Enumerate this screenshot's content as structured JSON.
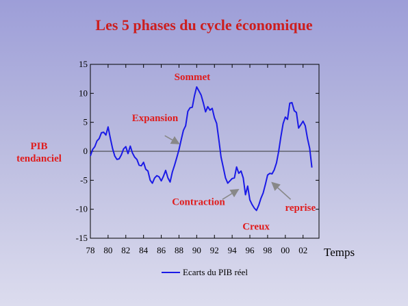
{
  "slide": {
    "title": "Les 5 phases du cycle économique"
  },
  "chart_data": {
    "type": "line",
    "xlabel": "Temps",
    "ylabel": "PIB tendanciel",
    "ylabel_lines": [
      "PIB",
      "tendanciel"
    ],
    "xlim": [
      1978,
      2003.8
    ],
    "ylim": [
      -15,
      15
    ],
    "x_ticks": [
      1978,
      1980,
      1982,
      1984,
      1986,
      1988,
      1990,
      1992,
      1994,
      1996,
      1998,
      2000,
      2002
    ],
    "x_tick_labels": [
      "78",
      "80",
      "82",
      "84",
      "86",
      "88",
      "90",
      "92",
      "94",
      "96",
      "98",
      "00",
      "02"
    ],
    "y_ticks": [
      15,
      10,
      5,
      0,
      -5,
      -10,
      -15
    ],
    "y_tick_labels": [
      "15",
      "10",
      "5",
      "0",
      "-5",
      "-10",
      "-15"
    ],
    "colors": {
      "series": "#1a1ae6",
      "annotation": "#e01c1c",
      "arrow": "#888888",
      "zero_line": "#333333"
    },
    "grid": false,
    "legend": {
      "position": "bottom-center",
      "label": "Ecarts du PIB réel"
    },
    "series": [
      {
        "name": "Ecarts du PIB réel",
        "x": [
          1978.0,
          1978.25,
          1978.5,
          1978.75,
          1979.0,
          1979.25,
          1979.5,
          1979.75,
          1980.0,
          1980.25,
          1980.5,
          1980.75,
          1981.0,
          1981.25,
          1981.5,
          1981.75,
          1982.0,
          1982.25,
          1982.5,
          1982.75,
          1983.0,
          1983.25,
          1983.5,
          1983.75,
          1984.0,
          1984.25,
          1984.5,
          1984.75,
          1985.0,
          1985.25,
          1985.5,
          1985.75,
          1986.0,
          1986.25,
          1986.5,
          1986.75,
          1987.0,
          1987.25,
          1987.5,
          1987.75,
          1988.0,
          1988.25,
          1988.5,
          1988.75,
          1989.0,
          1989.25,
          1989.5,
          1989.75,
          1990.0,
          1990.25,
          1990.5,
          1990.75,
          1991.0,
          1991.25,
          1991.5,
          1991.75,
          1992.0,
          1992.25,
          1992.5,
          1992.75,
          1993.0,
          1993.25,
          1993.5,
          1993.75,
          1994.0,
          1994.25,
          1994.5,
          1994.75,
          1995.0,
          1995.25,
          1995.5,
          1995.75,
          1996.0,
          1996.25,
          1996.5,
          1996.75,
          1997.0,
          1997.25,
          1997.5,
          1997.75,
          1998.0,
          1998.25,
          1998.5,
          1998.75,
          1999.0,
          1999.25,
          1999.5,
          1999.75,
          2000.0,
          2000.25,
          2000.5,
          2000.75,
          2001.0,
          2001.25,
          2001.5,
          2001.75,
          2002.0,
          2002.25,
          2002.5,
          2002.75,
          2003.0
        ],
        "y": [
          -0.8,
          0.3,
          0.8,
          1.8,
          2.2,
          3.2,
          3.3,
          2.8,
          4.2,
          2.3,
          0.5,
          -0.8,
          -1.4,
          -1.3,
          -0.6,
          0.4,
          0.8,
          -0.4,
          0.9,
          -0.3,
          -1.0,
          -1.4,
          -2.4,
          -2.5,
          -1.9,
          -3.1,
          -3.4,
          -5.0,
          -5.5,
          -4.6,
          -4.2,
          -4.4,
          -5.1,
          -4.3,
          -3.3,
          -4.6,
          -5.3,
          -3.6,
          -2.4,
          -1.1,
          0.3,
          2.0,
          3.6,
          4.4,
          6.9,
          7.5,
          7.6,
          9.6,
          11.1,
          10.4,
          9.7,
          8.3,
          6.8,
          7.7,
          7.1,
          7.4,
          5.8,
          4.8,
          2.0,
          -1.0,
          -2.8,
          -4.6,
          -5.5,
          -5.1,
          -4.7,
          -4.6,
          -2.7,
          -3.8,
          -3.4,
          -4.6,
          -7.5,
          -6.0,
          -8.4,
          -9.2,
          -9.8,
          -10.2,
          -9.3,
          -8.1,
          -7.2,
          -5.7,
          -4.1,
          -3.8,
          -3.9,
          -3.2,
          -2.0,
          0.0,
          2.5,
          4.8,
          5.9,
          5.5,
          8.3,
          8.4,
          7.0,
          6.7,
          4.0,
          4.6,
          5.2,
          4.4,
          2.2,
          0.5,
          -2.8
        ]
      }
    ],
    "annotations": [
      {
        "text": "Sommet",
        "x": 1989.5,
        "y": 12.3
      },
      {
        "text": "Expansion",
        "x": 1985.3,
        "y": 5.2
      },
      {
        "text": "Contraction",
        "x": 1990.2,
        "y": -9.3
      },
      {
        "text": "Creux",
        "x": 1996.7,
        "y": -13.5
      },
      {
        "text": "reprise",
        "x": 2001.7,
        "y": -10.3
      }
    ],
    "arrows": [
      {
        "from": [
          1986.4,
          2.7
        ],
        "to": [
          1988.0,
          1.3
        ]
      },
      {
        "from": [
          1992.9,
          -8.3
        ],
        "to": [
          1994.7,
          -6.6
        ]
      },
      {
        "from": [
          2000.6,
          -8.3
        ],
        "to": [
          1998.5,
          -5.4
        ]
      }
    ]
  }
}
